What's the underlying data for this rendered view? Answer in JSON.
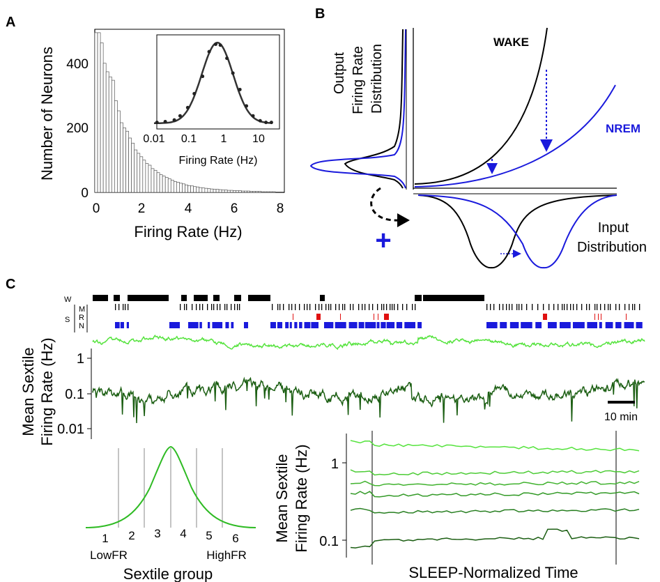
{
  "panels": {
    "a": "A",
    "b": "B",
    "c": "C"
  },
  "panel_a": {
    "ylabel": "Number of Neurons",
    "xlabel": "Firing Rate (Hz)",
    "yticks": [
      "0",
      "200",
      "400"
    ],
    "xticks": [
      "0",
      "2",
      "4",
      "6",
      "8"
    ],
    "inset": {
      "xlabel": "Firing Rate (Hz)",
      "xticks": [
        "0.01",
        "0.1",
        "1",
        "10"
      ]
    }
  },
  "panel_b": {
    "output_label": [
      "Output",
      "Firing Rate",
      "Distribution"
    ],
    "wake_label": "WAKE",
    "nrem_label": "NREM",
    "input_label": [
      "Input",
      "Distribution"
    ],
    "plus": "+",
    "colors": {
      "wake": "#000000",
      "nrem": "#1a1adc"
    }
  },
  "panel_c": {
    "state_labels": {
      "w": "W",
      "s": "S",
      "m": "M",
      "r": "R",
      "n": "N"
    },
    "ylabel": [
      "Mean Sextile",
      "Firing Rate (Hz)"
    ],
    "yticks": [
      "1",
      "0.1",
      "0.01"
    ],
    "scalebar": "10 min",
    "sextile": {
      "xlabel": "Sextile group",
      "groups": [
        "1",
        "2",
        "3",
        "4",
        "5",
        "6"
      ],
      "low": "LowFR",
      "high": "HighFR"
    },
    "normalized": {
      "ylabel": [
        "Mean Sextile",
        "Firing Rate (Hz)"
      ],
      "yticks": [
        "1",
        "0.1"
      ],
      "xlabel": "SLEEP-Normalized Time"
    },
    "colors": {
      "wake": "#000000",
      "rem": "#e01010",
      "nrem": "#1a1adc",
      "light": "#55e33d",
      "dark": "#1b5e12"
    }
  },
  "chart_data": [
    {
      "type": "bar",
      "panel": "A",
      "xlabel": "Firing Rate (Hz)",
      "ylabel": "Number of Neurons",
      "xlim": [
        0,
        8.4
      ],
      "ylim": [
        0,
        480
      ],
      "bin_width": 0.125,
      "values": [
        470,
        470,
        440,
        380,
        355,
        340,
        330,
        270,
        240,
        205,
        190,
        180,
        160,
        145,
        125,
        115,
        105,
        95,
        85,
        80,
        70,
        65,
        58,
        52,
        48,
        44,
        40,
        36,
        32,
        30,
        27,
        25,
        22,
        20,
        19,
        17,
        16,
        14,
        13,
        12,
        11,
        10,
        9,
        9,
        8,
        7,
        7,
        6,
        6,
        5,
        5,
        5,
        4,
        4,
        4,
        3,
        3,
        3,
        3,
        2,
        2,
        2,
        2,
        2
      ]
    },
    {
      "type": "scatter",
      "panel": "A-inset",
      "xlabel": "Firing Rate (Hz)",
      "xscale": "log",
      "xlim": [
        0.01,
        15
      ],
      "x": [
        0.012,
        0.02,
        0.035,
        0.05,
        0.08,
        0.12,
        0.2,
        0.3,
        0.45,
        0.6,
        0.9,
        1.3,
        2.0,
        3.0,
        4.5,
        7,
        10,
        14
      ],
      "y": [
        0.02,
        0.03,
        0.05,
        0.1,
        0.2,
        0.37,
        0.58,
        0.88,
        0.97,
        0.96,
        0.8,
        0.62,
        0.42,
        0.22,
        0.1,
        0.04,
        0.02,
        0.02
      ]
    }
  ]
}
